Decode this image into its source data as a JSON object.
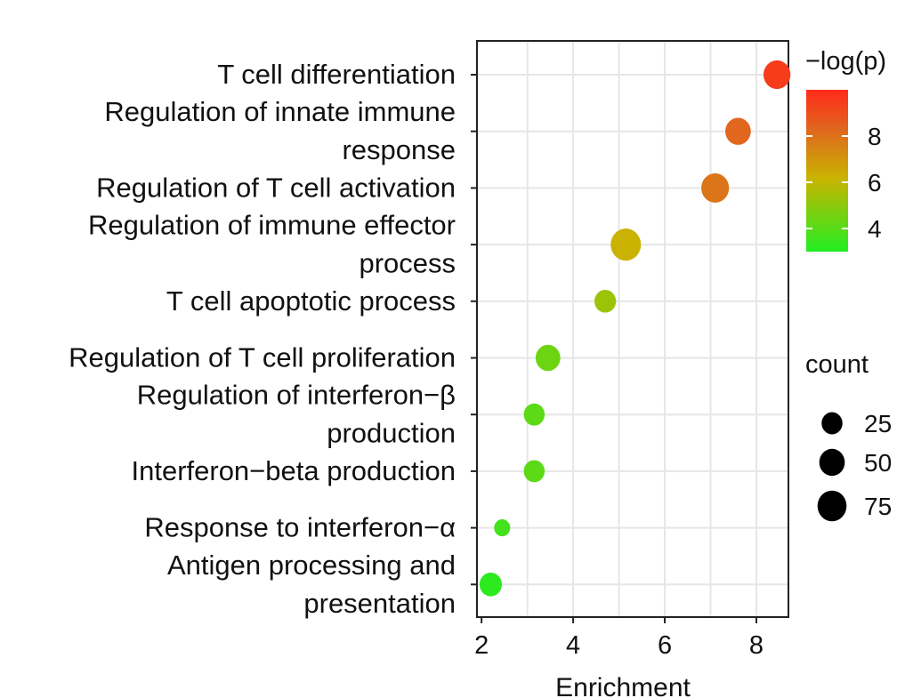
{
  "chart_data": {
    "type": "scatter",
    "xlabel": "Enrichment",
    "ylabel": "",
    "xlim": [
      1.9,
      8.7
    ],
    "x_ticks": [
      2,
      4,
      6,
      8
    ],
    "grid": true,
    "categories": [
      [
        "T cell differentiation"
      ],
      [
        "Regulation of innate immune",
        "response"
      ],
      [
        "Regulation of T cell activation"
      ],
      [
        "Regulation of immune effector",
        "process"
      ],
      [
        "T cell apoptotic process"
      ],
      [
        "Regulation of T cell proliferation"
      ],
      [
        "Regulation of interferon−β",
        "production"
      ],
      [
        "Interferon−beta production"
      ],
      [
        "Response to interferon−α"
      ],
      [
        "Antigen processing and",
        "presentation"
      ]
    ],
    "points": [
      {
        "x": 8.45,
        "neg_log_p": 9.5,
        "count": 60
      },
      {
        "x": 7.6,
        "neg_log_p": 8.3,
        "count": 50
      },
      {
        "x": 7.1,
        "neg_log_p": 7.9,
        "count": 65
      },
      {
        "x": 5.15,
        "neg_log_p": 6.2,
        "count": 85
      },
      {
        "x": 4.7,
        "neg_log_p": 5.3,
        "count": 28
      },
      {
        "x": 3.45,
        "neg_log_p": 4.4,
        "count": 45
      },
      {
        "x": 3.15,
        "neg_log_p": 4.1,
        "count": 25
      },
      {
        "x": 3.15,
        "neg_log_p": 4.1,
        "count": 25
      },
      {
        "x": 2.45,
        "neg_log_p": 3.6,
        "count": 8
      },
      {
        "x": 2.2,
        "neg_log_p": 3.2,
        "count": 32
      }
    ],
    "color_legend": {
      "title": "−log(p)",
      "range": [
        3.0,
        10.0
      ],
      "ticks": [
        4,
        6,
        8
      ],
      "colors": [
        "#22ee22",
        "#c8b400",
        "#e0681e",
        "#ff2a1a"
      ]
    },
    "size_legend": {
      "title": "count",
      "values": [
        25,
        50,
        75
      ]
    }
  }
}
